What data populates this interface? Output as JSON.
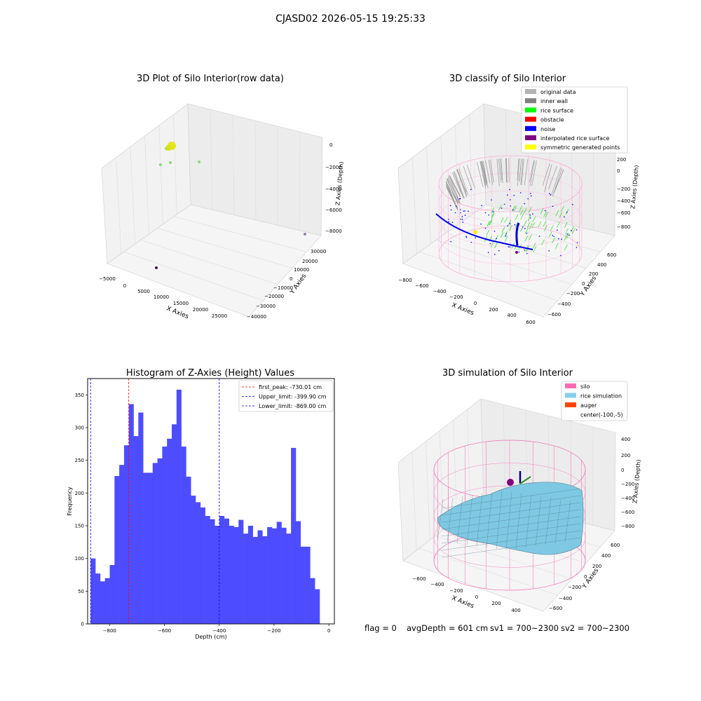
{
  "figure_title": "CJASD02 2026-05-15 19:25:33",
  "status_line": {
    "flag": "flag = 0",
    "avg_depth": "avgDepth = 601 cm",
    "sv1": "sv1 = 700~2300",
    "sv2": "sv2 = 700~2300"
  },
  "chart_data": [
    {
      "type": "scatter",
      "title": "3D Plot of Silo Interior(row data)",
      "xlabel": "X Axies",
      "ylabel": "Y Axies",
      "zlabel": "Z Axies (Depth)",
      "x_ticks": [
        "−5000",
        "0",
        "5000",
        "10000",
        "15000",
        "20000",
        "25000"
      ],
      "y_ticks": [
        "30000",
        "20000",
        "10000",
        "0",
        "−10000",
        "−20000",
        "−30000",
        "−40000"
      ],
      "z_ticks": [
        "0",
        "−2000",
        "−4000",
        "−6000",
        "−8000"
      ],
      "colors": {
        "cluster": "#e6e619",
        "light_green": "#8ed67a",
        "purple_point": "#9b7fa8",
        "dark_point": "#4b0c6b"
      }
    },
    {
      "type": "scatter",
      "title": "3D classify of Silo Interior",
      "xlabel": "X Axies",
      "ylabel": "Y Axies",
      "zlabel": "Z Axies (Depth)",
      "x_ticks": [
        "−800",
        "−600",
        "−400",
        "−200",
        "0",
        "200",
        "400",
        "600"
      ],
      "y_ticks": [
        "600",
        "400",
        "200",
        "0",
        "−200",
        "−400",
        "−600"
      ],
      "z_ticks": [
        "200",
        "0",
        "−200",
        "−400",
        "−600",
        "−800"
      ],
      "legend": [
        {
          "label": "original data",
          "color": "#b3b3b3"
        },
        {
          "label": "inner wall",
          "color": "#808080"
        },
        {
          "label": "rice surface",
          "color": "#00ff00"
        },
        {
          "label": "obstacle",
          "color": "#ff0000"
        },
        {
          "label": "noise",
          "color": "#0000ff"
        },
        {
          "label": "interpolated rice surface",
          "color": "#800080"
        },
        {
          "label": "symmetric generated points",
          "color": "#ffff00"
        }
      ],
      "legend_position": "top-right"
    },
    {
      "type": "bar",
      "title": "Histogram of Z-Axies (Height) Values",
      "xlabel": "Depth (cm)",
      "ylabel": "Frequency",
      "bin_start": -869,
      "bin_width": 17.4,
      "values": [
        100,
        77,
        65,
        70,
        90,
        226,
        243,
        273,
        336,
        287,
        323,
        231,
        231,
        246,
        253,
        271,
        283,
        305,
        358,
        271,
        225,
        196,
        186,
        178,
        165,
        160,
        150,
        165,
        161,
        150,
        148,
        159,
        138,
        150,
        133,
        143,
        134,
        148,
        146,
        156,
        147,
        138,
        269,
        157,
        118,
        118,
        70,
        53
      ],
      "xlim": [
        -880,
        20
      ],
      "ylim": [
        0,
        375
      ],
      "x_ticks": [
        -800,
        -600,
        -400,
        -200,
        0
      ],
      "x_tick_labels": [
        "−800",
        "−600",
        "−400",
        "−200",
        "0"
      ],
      "y_ticks": [
        0,
        50,
        100,
        150,
        200,
        250,
        300,
        350
      ],
      "bar_color": "#4d4dff",
      "vlines": [
        {
          "x": -730.01,
          "label": "first_peak: -730.01 cm",
          "color": "#ff0000"
        },
        {
          "x": -399.9,
          "label": "Upper_limit: -399.90 cm",
          "color": "#0000ff"
        },
        {
          "x": -869.0,
          "label": "Lower_limit: -869.00 cm",
          "color": "#0000ff"
        }
      ],
      "legend_position": "top-right"
    },
    {
      "type": "surface",
      "title": "3D simulation of Silo Interior",
      "xlabel": "X Axies",
      "ylabel": "Y Axies",
      "zlabel": "Z Axies (Depth)",
      "x_ticks": [
        "−600",
        "−400",
        "−200",
        "0",
        "200",
        "400"
      ],
      "y_ticks": [
        "600",
        "400",
        "200",
        "0",
        "−200",
        "−400",
        "−600"
      ],
      "z_ticks": [
        "400",
        "200",
        "0",
        "−200",
        "−400",
        "−600",
        "−800"
      ],
      "legend": [
        {
          "label": "silo",
          "color": "#ff69b4"
        },
        {
          "label": "rice simulation",
          "color": "#87ceeb"
        },
        {
          "label": "auger",
          "color": "#ff4500"
        },
        {
          "label": "center(-100,-5)",
          "color": ""
        }
      ],
      "legend_position": "top-right"
    }
  ]
}
